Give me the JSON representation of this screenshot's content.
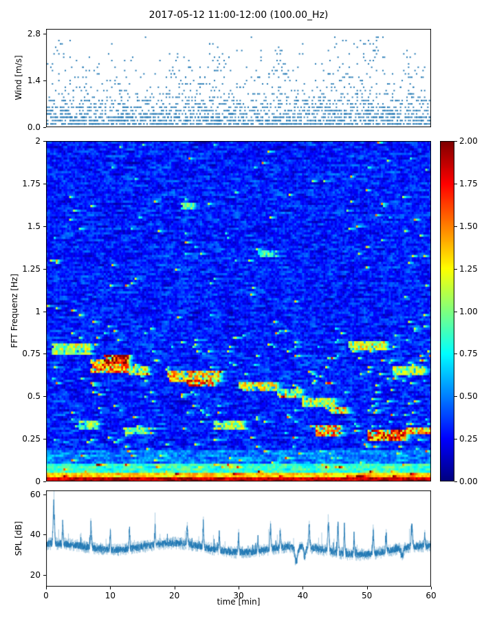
{
  "title": "2017-05-12 11:00-12:00 (100.00_Hz)",
  "xlabel": "time [min]",
  "xticks": {
    "values": [
      0,
      10,
      20,
      30,
      40,
      50,
      60
    ],
    "labels": [
      "0",
      "10",
      "20",
      "30",
      "40",
      "50",
      "60"
    ]
  },
  "colors": {
    "accent": "#1f77b4",
    "axis": "#000000",
    "background": "#ffffff"
  },
  "colorbar": {
    "colormap": "jet",
    "vmin": 0,
    "vmax": 2,
    "tick_values": [
      2,
      1.75,
      1.5,
      1.25,
      1,
      0.75,
      0.5,
      0.25,
      0
    ],
    "tick_labels": [
      "2.00",
      "1.75",
      "1.50",
      "1.25",
      "1.00",
      "0.75",
      "0.50",
      "0.25",
      "0.00"
    ]
  },
  "chart_data": [
    {
      "type": "scatter",
      "name": "wind",
      "ylabel": "Wind [m/s]",
      "xlim": [
        0,
        60
      ],
      "ylim": [
        0,
        2.95
      ],
      "ytick_values": [
        0.0,
        1.4,
        2.8
      ],
      "ytick_labels": [
        "0.0",
        "1.4",
        "2.8"
      ],
      "marker_color": "#1f77b4",
      "gen": {
        "seed": 101,
        "n": 2100,
        "x_quantum": 0.25,
        "y_quantum": 0.1,
        "exp_scale": 0.5,
        "y_min": 0.1,
        "y_max": 2.8,
        "clusters": [
          {
            "x": 2,
            "spread": 1.2,
            "n": 10,
            "y": [
              1.5,
              2.6
            ]
          },
          {
            "x": 21,
            "spread": 1.5,
            "n": 10,
            "y": [
              1.4,
              2.1
            ]
          },
          {
            "x": 27,
            "spread": 1.5,
            "n": 12,
            "y": [
              1.4,
              2.2
            ]
          },
          {
            "x": 36,
            "spread": 1.5,
            "n": 14,
            "y": [
              1.5,
              2.4
            ]
          },
          {
            "x": 47,
            "spread": 3.0,
            "n": 26,
            "y": [
              1.4,
              2.6
            ]
          },
          {
            "x": 51.5,
            "spread": 1.2,
            "n": 20,
            "y": [
              1.6,
              2.8
            ]
          },
          {
            "x": 57,
            "spread": 1.5,
            "n": 12,
            "y": [
              1.4,
              2.2
            ]
          }
        ]
      }
    },
    {
      "type": "heatmap",
      "name": "spectrogram",
      "ylabel": "FFT Frequenz [Hz]",
      "xlim": [
        0,
        60
      ],
      "ylim": [
        0,
        2
      ],
      "colormap": "jet",
      "clim": [
        0,
        2
      ],
      "ytick_values": [
        0,
        0.25,
        0.5,
        0.75,
        1,
        1.25,
        1.5,
        1.75,
        2
      ],
      "ytick_labels": [
        "0",
        "0.25",
        "0.5",
        "0.75",
        "1",
        "1.25",
        "1.5",
        "1.75",
        "2"
      ],
      "bands": [
        {
          "y": 0.0,
          "h": 0.022,
          "v": 1.85
        },
        {
          "y": 0.022,
          "h": 0.03,
          "v": 1.35
        },
        {
          "y": 0.052,
          "h": 0.05,
          "v": 0.85
        },
        {
          "y": 0.102,
          "h": 0.09,
          "v": 0.5
        }
      ],
      "features": [
        {
          "x": 1,
          "w": 6,
          "y": 0.78,
          "h": 0.03,
          "v": 1.1
        },
        {
          "x": 7,
          "w": 6,
          "y": 0.68,
          "h": 0.035,
          "v": 1.5
        },
        {
          "x": 9,
          "w": 4,
          "y": 0.72,
          "h": 0.025,
          "v": 1.8
        },
        {
          "x": 13,
          "w": 3,
          "y": 0.65,
          "h": 0.025,
          "v": 1.2
        },
        {
          "x": 5,
          "w": 3,
          "y": 0.33,
          "h": 0.025,
          "v": 1.0
        },
        {
          "x": 12,
          "w": 4,
          "y": 0.3,
          "h": 0.025,
          "v": 1.0
        },
        {
          "x": 19,
          "w": 8,
          "y": 0.62,
          "h": 0.03,
          "v": 1.3
        },
        {
          "x": 22,
          "w": 4,
          "y": 0.58,
          "h": 0.025,
          "v": 1.6
        },
        {
          "x": 21,
          "w": 2,
          "y": 1.62,
          "h": 0.02,
          "v": 0.9
        },
        {
          "x": 26,
          "w": 5,
          "y": 0.33,
          "h": 0.025,
          "v": 1.1
        },
        {
          "x": 30,
          "w": 6,
          "y": 0.56,
          "h": 0.03,
          "v": 1.2
        },
        {
          "x": 33,
          "w": 3,
          "y": 1.34,
          "h": 0.02,
          "v": 0.9
        },
        {
          "x": 36,
          "w": 4,
          "y": 0.52,
          "h": 0.025,
          "v": 1.0
        },
        {
          "x": 40,
          "w": 5,
          "y": 0.47,
          "h": 0.025,
          "v": 1.1
        },
        {
          "x": 42,
          "w": 4,
          "y": 0.3,
          "h": 0.03,
          "v": 1.5
        },
        {
          "x": 44,
          "w": 3,
          "y": 0.42,
          "h": 0.025,
          "v": 1.3
        },
        {
          "x": 47,
          "w": 6,
          "y": 0.8,
          "h": 0.03,
          "v": 1.2
        },
        {
          "x": 50,
          "w": 6,
          "y": 0.27,
          "h": 0.03,
          "v": 1.6
        },
        {
          "x": 54,
          "w": 5,
          "y": 0.65,
          "h": 0.025,
          "v": 1.1
        },
        {
          "x": 56,
          "w": 4,
          "y": 0.3,
          "h": 0.025,
          "v": 1.4
        }
      ],
      "gen": {
        "seed": 202,
        "nx": 200,
        "ny": 150,
        "background": 0.3,
        "noise": 0.55,
        "burst_prob_low": 0.02,
        "burst_prob_high": 0.006,
        "burst_freq_split": 0.9
      }
    },
    {
      "type": "line",
      "name": "spl",
      "ylabel": "SPL [dB]",
      "xlim": [
        0,
        60
      ],
      "ylim": [
        14,
        62
      ],
      "ytick_values": [
        20,
        40,
        60
      ],
      "ytick_labels": [
        "20",
        "40",
        "60"
      ],
      "line_color": "#1f77b4",
      "gen": {
        "seed": 303,
        "n": 2600,
        "base": 33,
        "noise": 1.7,
        "spikes": [
          {
            "x": 1.2,
            "v": 57,
            "w": 0.15
          },
          {
            "x": 2.6,
            "v": 45,
            "w": 0.1
          },
          {
            "x": 7.0,
            "v": 47,
            "w": 0.12
          },
          {
            "x": 10.0,
            "v": 43,
            "w": 0.1
          },
          {
            "x": 13.0,
            "v": 45,
            "w": 0.1
          },
          {
            "x": 17.0,
            "v": 43,
            "w": 0.1
          },
          {
            "x": 22.0,
            "v": 44,
            "w": 0.12
          },
          {
            "x": 24.5,
            "v": 46,
            "w": 0.1
          },
          {
            "x": 27.0,
            "v": 42,
            "w": 0.1
          },
          {
            "x": 30.0,
            "v": 44,
            "w": 0.1
          },
          {
            "x": 33.0,
            "v": 41,
            "w": 0.1
          },
          {
            "x": 35.0,
            "v": 46,
            "w": 0.12
          },
          {
            "x": 36.5,
            "v": 44,
            "w": 0.1
          },
          {
            "x": 41.0,
            "v": 47,
            "w": 0.12
          },
          {
            "x": 44.0,
            "v": 50,
            "w": 0.15
          },
          {
            "x": 45.5,
            "v": 48,
            "w": 0.12
          },
          {
            "x": 46.5,
            "v": 49,
            "w": 0.1
          },
          {
            "x": 48.0,
            "v": 44,
            "w": 0.1
          },
          {
            "x": 51.0,
            "v": 46,
            "w": 0.12
          },
          {
            "x": 53.0,
            "v": 43,
            "w": 0.1
          },
          {
            "x": 57.0,
            "v": 45,
            "w": 0.15
          },
          {
            "x": 59.0,
            "v": 41,
            "w": 0.1
          }
        ],
        "dips": [
          {
            "x": 39.0,
            "v": 24,
            "w": 0.3
          },
          {
            "x": 40.3,
            "v": 27,
            "w": 0.2
          },
          {
            "x": 55.5,
            "v": 28,
            "w": 0.25
          }
        ]
      }
    }
  ]
}
